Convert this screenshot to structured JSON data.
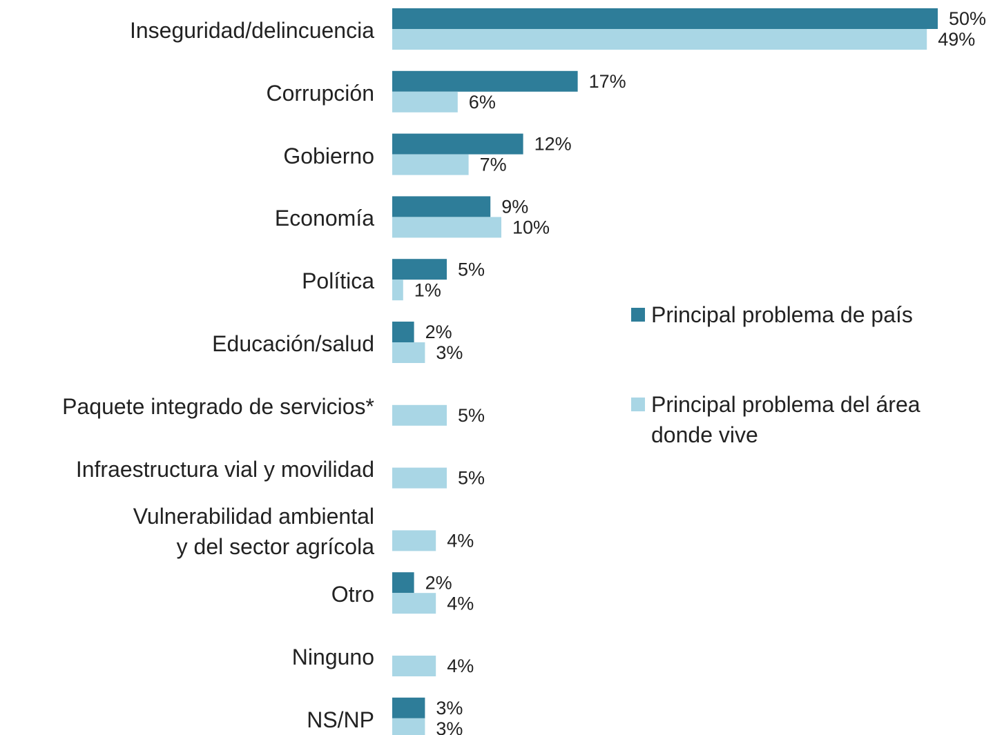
{
  "chart_data": {
    "type": "barh",
    "categories": [
      "Inseguridad/delincuencia",
      "Corrupción",
      "Gobierno",
      "Economía",
      "Política",
      "Educación/salud",
      "Paquete integrado de servicios*",
      "Infraestructura vial y movilidad",
      "Vulnerabilidad ambiental\ny del sector agrícola",
      "Otro",
      "Ninguno",
      "NS/NP"
    ],
    "xlim": [
      0,
      50
    ],
    "series": [
      {
        "name": "Principal problema de país",
        "color": "#2e7d99",
        "values": [
          50,
          17,
          12,
          9,
          5,
          2,
          null,
          null,
          null,
          2,
          null,
          3
        ],
        "value_labels": [
          "50%",
          "17%",
          "12%",
          "9%",
          "5%",
          "2%",
          null,
          null,
          null,
          "2%",
          null,
          "3%"
        ]
      },
      {
        "name": "Principal problema del área donde vive",
        "color": "#a9d6e5",
        "values": [
          49,
          6,
          7,
          10,
          1,
          3,
          5,
          5,
          4,
          4,
          4,
          3
        ],
        "value_labels": [
          "49%",
          "6%",
          "7%",
          "10%",
          "1%",
          "3%",
          "5%",
          "5%",
          "4%",
          "4%",
          "4%",
          "3%"
        ]
      }
    ],
    "legend": "right"
  }
}
